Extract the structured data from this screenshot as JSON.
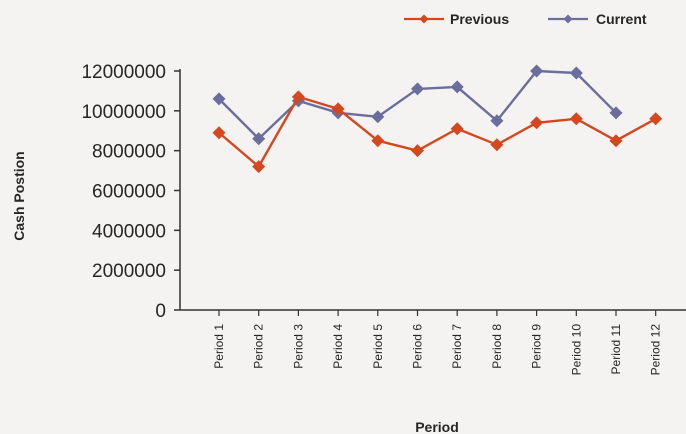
{
  "chart_data": {
    "type": "line",
    "categories": [
      "Period 1",
      "Period 2",
      "Period 3",
      "Period 4",
      "Period 5",
      "Period 6",
      "Period 7",
      "Period 8",
      "Period 9",
      "Period 10",
      "Period 11",
      "Period 12"
    ],
    "series": [
      {
        "name": "Previous",
        "color": "#d4471f",
        "marker": "diamond",
        "values": [
          8900000,
          7200000,
          10700000,
          10100000,
          8500000,
          8000000,
          9100000,
          8300000,
          9400000,
          9600000,
          8500000,
          9600000
        ]
      },
      {
        "name": "Current",
        "color": "#6b6d9c",
        "marker": "diamond",
        "values": [
          10600000,
          8600000,
          10500000,
          9900000,
          9700000,
          11100000,
          11200000,
          9500000,
          12000000,
          11900000,
          9900000,
          null
        ]
      }
    ],
    "xlabel": "Period",
    "ylabel": "Cash Postion",
    "ylim": [
      0,
      12000000
    ],
    "yticks": [
      0,
      2000000,
      4000000,
      6000000,
      8000000,
      10000000,
      12000000
    ],
    "ytick_labels": [
      "0",
      "2000000",
      "4000000",
      "6000000",
      "8000000",
      "10000000",
      "12000000"
    ],
    "grid": false,
    "legend_position": "top-right"
  }
}
